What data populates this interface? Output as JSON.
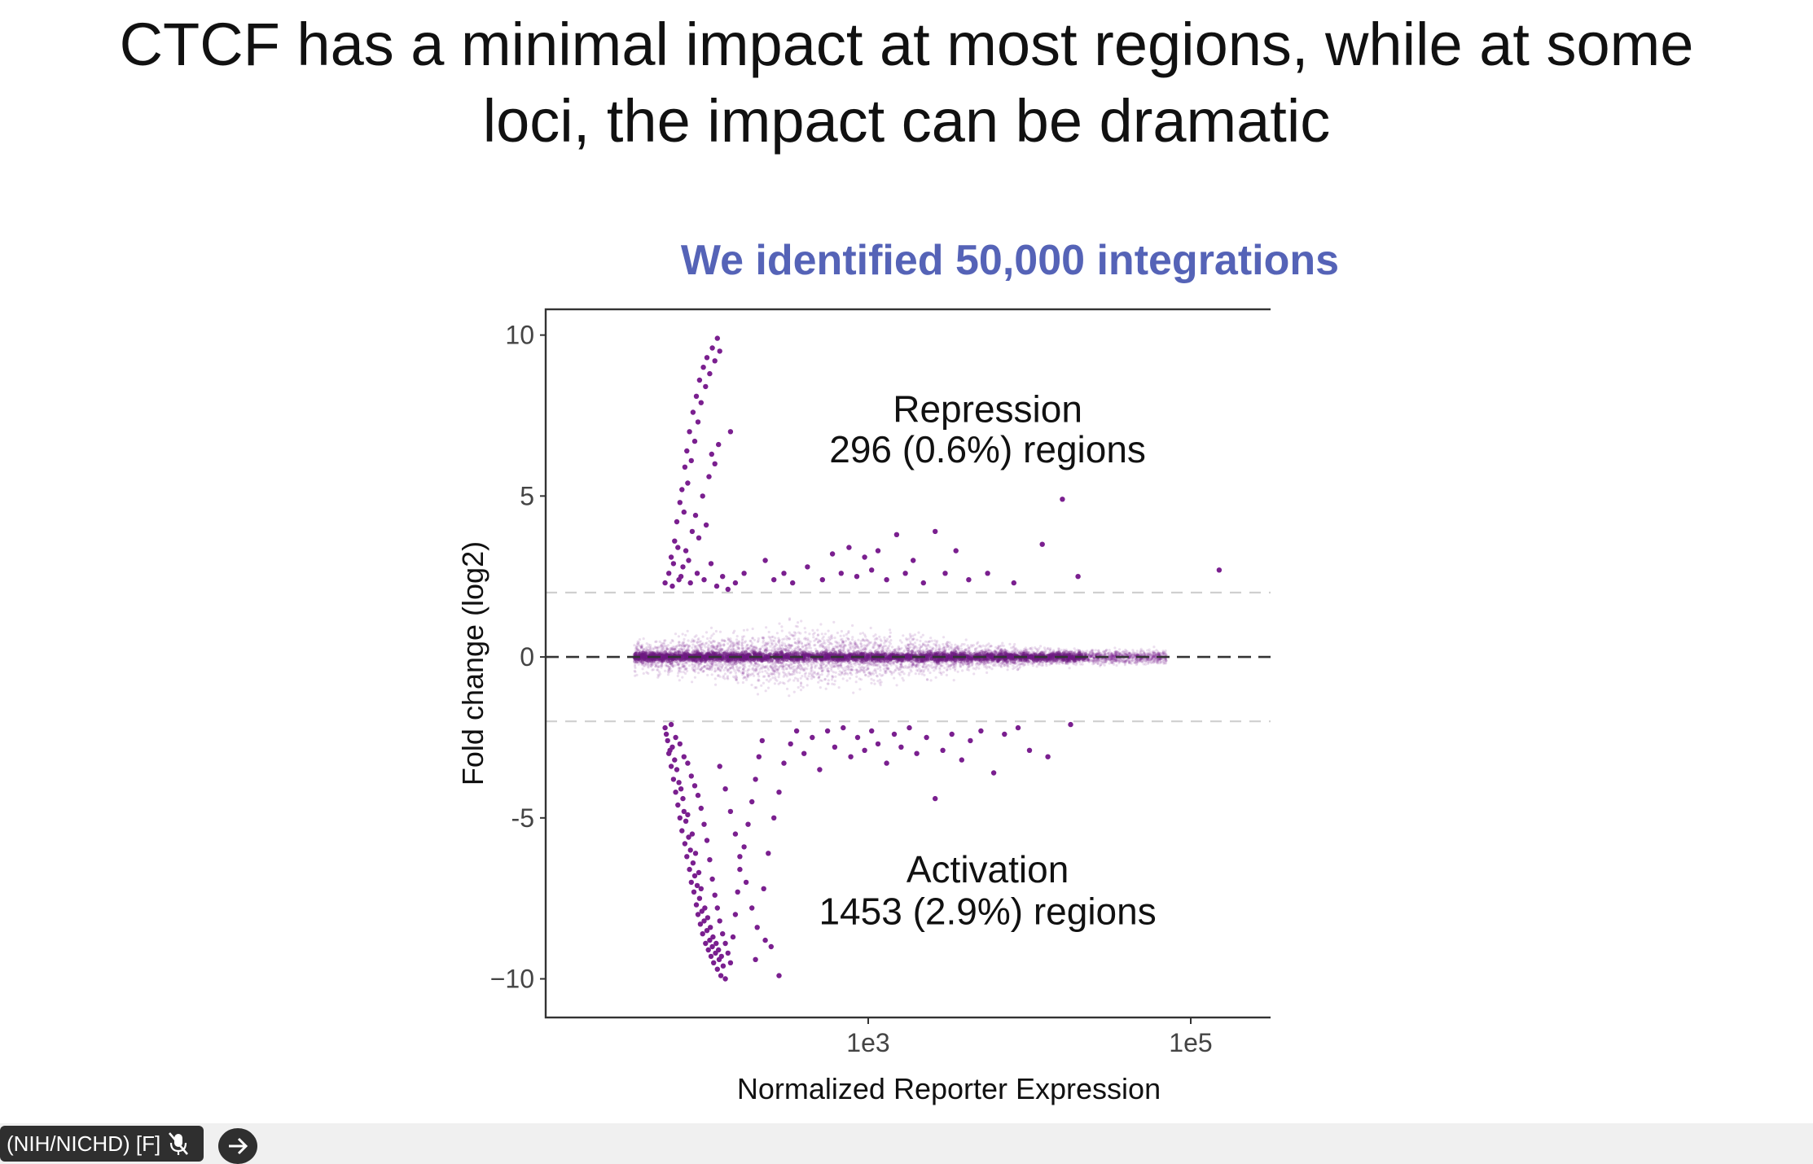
{
  "slide": {
    "title_line1": "CTCF has a minimal impact at most regions, while at some",
    "title_line2": "loci, the impact can be dramatic"
  },
  "chart_data": {
    "type": "scatter",
    "title": "We identified 50,000 integrations",
    "xlabel": "Normalized Reporter Expression",
    "ylabel": "Fold change (log2)",
    "x_scale": "log10",
    "xlim": [
      10,
      1000000
    ],
    "ylim": [
      -11.2,
      10.8
    ],
    "x_ticks": [
      {
        "value": 1000,
        "label": "1e3"
      },
      {
        "value": 100000,
        "label": "1e5"
      }
    ],
    "y_ticks": [
      {
        "value": 10,
        "label": "10"
      },
      {
        "value": 5,
        "label": "5"
      },
      {
        "value": 0,
        "label": "0"
      },
      {
        "value": -5,
        "label": "-5"
      },
      {
        "value": -10,
        "label": "−10"
      }
    ],
    "reference_lines": [
      {
        "y": 2,
        "style": "dashed",
        "color": "#cfcfcf"
      },
      {
        "y": 0,
        "style": "dashed",
        "color": "#333333"
      },
      {
        "y": -2,
        "style": "dashed",
        "color": "#cfcfcf"
      }
    ],
    "point_color": "#7a1f8f",
    "total_integrations": 50000,
    "annotations": [
      {
        "label": "Repression",
        "detail": "296 (0.6%) regions"
      },
      {
        "label": "Activation",
        "detail": "1453 (2.9%) regions"
      }
    ],
    "repression_points": [
      [
        55,
        2.3
      ],
      [
        58,
        2.6
      ],
      [
        60,
        3.1
      ],
      [
        62,
        2.9
      ],
      [
        63,
        3.6
      ],
      [
        65,
        4.2
      ],
      [
        66,
        3.4
      ],
      [
        68,
        4.8
      ],
      [
        70,
        5.2
      ],
      [
        72,
        4.5
      ],
      [
        73,
        5.9
      ],
      [
        75,
        6.4
      ],
      [
        76,
        5.4
      ],
      [
        78,
        7.0
      ],
      [
        80,
        6.1
      ],
      [
        82,
        7.6
      ],
      [
        84,
        6.7
      ],
      [
        86,
        8.1
      ],
      [
        88,
        7.3
      ],
      [
        90,
        8.6
      ],
      [
        92,
        7.9
      ],
      [
        95,
        9.0
      ],
      [
        98,
        8.4
      ],
      [
        100,
        9.3
      ],
      [
        104,
        8.8
      ],
      [
        108,
        9.6
      ],
      [
        112,
        9.2
      ],
      [
        116,
        9.9
      ],
      [
        120,
        9.5
      ],
      [
        67,
        2.4
      ],
      [
        71,
        2.8
      ],
      [
        74,
        3.3
      ],
      [
        77,
        3.0
      ],
      [
        81,
        3.9
      ],
      [
        85,
        4.4
      ],
      [
        89,
        3.7
      ],
      [
        94,
        5.0
      ],
      [
        99,
        4.1
      ],
      [
        103,
        5.6
      ],
      [
        107,
        6.3
      ],
      [
        112,
        6.0
      ],
      [
        118,
        6.6
      ],
      [
        61,
        2.2
      ],
      [
        69,
        2.5
      ],
      [
        79,
        2.3
      ],
      [
        87,
        2.6
      ],
      [
        96,
        2.4
      ],
      [
        106,
        2.9
      ],
      [
        115,
        2.2
      ],
      [
        125,
        2.5
      ],
      [
        135,
        2.1
      ],
      [
        140,
        7.0
      ],
      [
        150,
        2.3
      ],
      [
        170,
        2.6
      ],
      [
        230,
        3.0
      ],
      [
        260,
        2.4
      ],
      [
        300,
        2.6
      ],
      [
        340,
        2.3
      ],
      [
        420,
        2.8
      ],
      [
        520,
        2.4
      ],
      [
        600,
        3.2
      ],
      [
        680,
        2.6
      ],
      [
        760,
        3.4
      ],
      [
        850,
        2.5
      ],
      [
        950,
        3.1
      ],
      [
        1050,
        2.7
      ],
      [
        1150,
        3.3
      ],
      [
        1300,
        2.4
      ],
      [
        1500,
        3.8
      ],
      [
        1700,
        2.6
      ],
      [
        1900,
        3.0
      ],
      [
        2200,
        2.3
      ],
      [
        2600,
        3.9
      ],
      [
        3000,
        2.6
      ],
      [
        3500,
        3.3
      ],
      [
        4200,
        2.4
      ],
      [
        5500,
        2.6
      ],
      [
        8000,
        2.3
      ],
      [
        12000,
        3.5
      ],
      [
        16000,
        4.9
      ],
      [
        20000,
        2.5
      ],
      [
        150000,
        2.7
      ]
    ],
    "activation_points": [
      [
        55,
        -2.2
      ],
      [
        57,
        -2.6
      ],
      [
        58,
        -3.0
      ],
      [
        60,
        -3.4
      ],
      [
        61,
        -2.8
      ],
      [
        62,
        -3.8
      ],
      [
        64,
        -4.2
      ],
      [
        65,
        -3.5
      ],
      [
        66,
        -4.6
      ],
      [
        68,
        -5.0
      ],
      [
        69,
        -4.1
      ],
      [
        70,
        -5.4
      ],
      [
        72,
        -4.8
      ],
      [
        73,
        -5.8
      ],
      [
        74,
        -5.1
      ],
      [
        75,
        -6.2
      ],
      [
        77,
        -5.6
      ],
      [
        78,
        -6.6
      ],
      [
        79,
        -6.0
      ],
      [
        80,
        -7.0
      ],
      [
        82,
        -6.4
      ],
      [
        83,
        -7.3
      ],
      [
        84,
        -6.8
      ],
      [
        86,
        -7.7
      ],
      [
        87,
        -7.1
      ],
      [
        88,
        -8.0
      ],
      [
        90,
        -7.5
      ],
      [
        91,
        -8.3
      ],
      [
        93,
        -7.9
      ],
      [
        94,
        -8.6
      ],
      [
        96,
        -8.2
      ],
      [
        98,
        -8.9
      ],
      [
        100,
        -8.5
      ],
      [
        102,
        -9.1
      ],
      [
        104,
        -8.8
      ],
      [
        106,
        -9.3
      ],
      [
        108,
        -9.0
      ],
      [
        110,
        -9.5
      ],
      [
        113,
        -9.2
      ],
      [
        116,
        -9.7
      ],
      [
        119,
        -9.4
      ],
      [
        122,
        -9.9
      ],
      [
        126,
        -9.6
      ],
      [
        130,
        -10.0
      ],
      [
        56,
        -2.4
      ],
      [
        59,
        -2.9
      ],
      [
        63,
        -3.2
      ],
      [
        67,
        -3.9
      ],
      [
        71,
        -4.4
      ],
      [
        76,
        -4.9
      ],
      [
        81,
        -5.5
      ],
      [
        85,
        -6.1
      ],
      [
        89,
        -6.7
      ],
      [
        92,
        -7.2
      ],
      [
        97,
        -7.8
      ],
      [
        101,
        -8.1
      ],
      [
        105,
        -8.4
      ],
      [
        109,
        -8.7
      ],
      [
        114,
        -8.9
      ],
      [
        118,
        -9.1
      ],
      [
        123,
        -9.3
      ],
      [
        60,
        -2.1
      ],
      [
        64,
        -2.5
      ],
      [
        68,
        -2.7
      ],
      [
        72,
        -3.1
      ],
      [
        76,
        -3.3
      ],
      [
        80,
        -3.7
      ],
      [
        84,
        -4.0
      ],
      [
        88,
        -4.3
      ],
      [
        92,
        -4.7
      ],
      [
        96,
        -5.2
      ],
      [
        100,
        -5.7
      ],
      [
        104,
        -6.3
      ],
      [
        108,
        -6.9
      ],
      [
        112,
        -7.4
      ],
      [
        116,
        -7.8
      ],
      [
        120,
        -8.2
      ],
      [
        125,
        -8.6
      ],
      [
        130,
        -8.9
      ],
      [
        135,
        -9.2
      ],
      [
        140,
        -9.5
      ],
      [
        145,
        -8.7
      ],
      [
        150,
        -8.0
      ],
      [
        155,
        -7.3
      ],
      [
        160,
        -6.6
      ],
      [
        170,
        -5.9
      ],
      [
        180,
        -5.2
      ],
      [
        190,
        -4.5
      ],
      [
        200,
        -3.8
      ],
      [
        210,
        -3.1
      ],
      [
        220,
        -2.6
      ],
      [
        120,
        -3.4
      ],
      [
        130,
        -4.1
      ],
      [
        140,
        -4.8
      ],
      [
        150,
        -5.5
      ],
      [
        160,
        -6.2
      ],
      [
        175,
        -7.0
      ],
      [
        190,
        -7.8
      ],
      [
        205,
        -8.4
      ],
      [
        225,
        -7.2
      ],
      [
        240,
        -6.1
      ],
      [
        260,
        -5.0
      ],
      [
        280,
        -4.2
      ],
      [
        300,
        -3.3
      ],
      [
        330,
        -2.7
      ],
      [
        360,
        -2.3
      ],
      [
        250,
        -9.0
      ],
      [
        280,
        -9.9
      ],
      [
        230,
        -8.8
      ],
      [
        200,
        -9.4
      ],
      [
        400,
        -3.0
      ],
      [
        450,
        -2.5
      ],
      [
        500,
        -3.5
      ],
      [
        560,
        -2.3
      ],
      [
        620,
        -2.8
      ],
      [
        700,
        -2.2
      ],
      [
        780,
        -3.1
      ],
      [
        860,
        -2.5
      ],
      [
        950,
        -2.9
      ],
      [
        1050,
        -2.3
      ],
      [
        1150,
        -2.7
      ],
      [
        1300,
        -3.3
      ],
      [
        1450,
        -2.4
      ],
      [
        1600,
        -2.8
      ],
      [
        1800,
        -2.2
      ],
      [
        2000,
        -3.0
      ],
      [
        2300,
        -2.5
      ],
      [
        2600,
        -4.4
      ],
      [
        2900,
        -2.9
      ],
      [
        3300,
        -2.4
      ],
      [
        3800,
        -3.2
      ],
      [
        4300,
        -2.6
      ],
      [
        5000,
        -2.3
      ],
      [
        6000,
        -3.6
      ],
      [
        7000,
        -2.4
      ],
      [
        8500,
        -2.2
      ],
      [
        10000,
        -2.9
      ],
      [
        13000,
        -3.1
      ],
      [
        18000,
        -2.1
      ]
    ]
  },
  "zoom_bar": {
    "participant_name": "(NIH/NICHD) [F]",
    "mic_state": "muted-mic-icon",
    "next_icon": "arrow-right-icon"
  }
}
